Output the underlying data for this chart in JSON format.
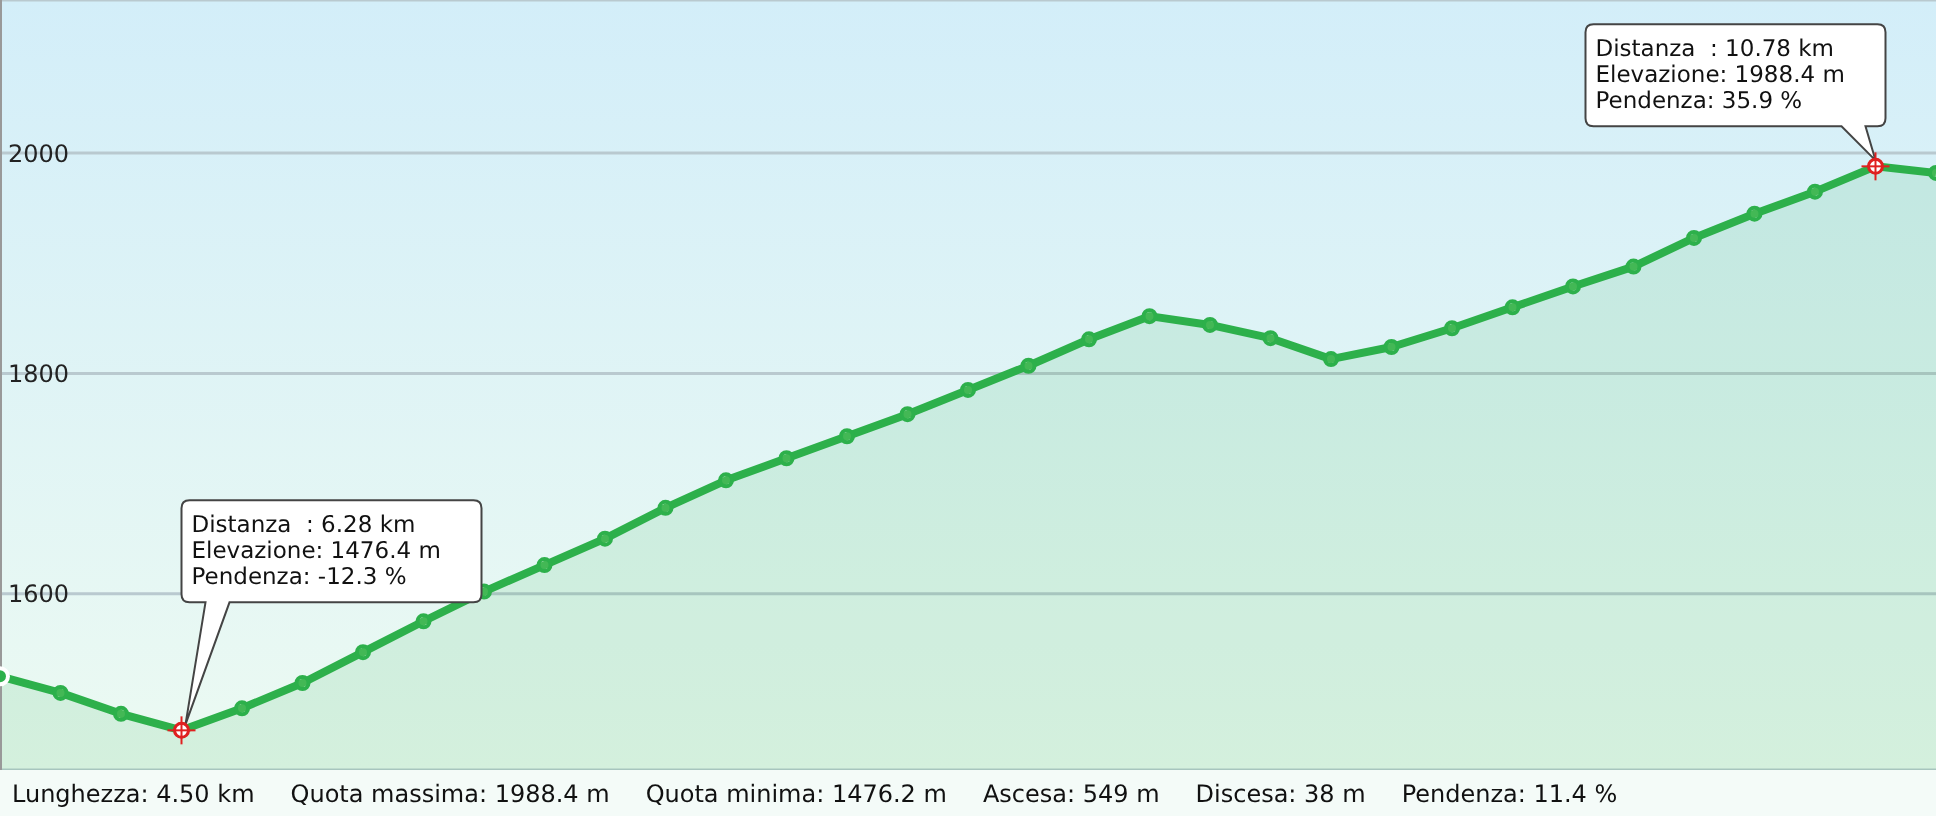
{
  "chart_data": {
    "type": "area",
    "categories": [
      null,
      null,
      null,
      null,
      null,
      null,
      null,
      null,
      null,
      null,
      null,
      null,
      null,
      null,
      null,
      null,
      null,
      null,
      null,
      null,
      null,
      null,
      null,
      null,
      null,
      null,
      null,
      null,
      null,
      null,
      null,
      null,
      null
    ],
    "series": [
      {
        "color": "#2db04b",
        "values": [
          1525,
          1510,
          1491,
          1476,
          1496,
          1519,
          1547,
          1575,
          1602,
          1626,
          1650,
          1678,
          1703,
          1723,
          1743,
          1763,
          1785,
          1807,
          1831,
          1852,
          1844,
          1832,
          1813,
          1824,
          1841,
          1860,
          1879,
          1897,
          1923,
          1945,
          1965,
          1988,
          1982
        ]
      }
    ],
    "ylim": [
      1440,
      2139
    ],
    "yticks": [
      1600,
      1800,
      2000
    ],
    "tick_labels": "y",
    "grid": "y",
    "marker": "circle",
    "annotations": [
      "Distanza  : 6.28 km\nElevazione: 1476.4 m\nPendenza: -12.3 %",
      "Distanza  : 10.78 km\nElevazione: 1988.4 m\nPendenza: 35.9 %",
      "Lunghezza: 4.50 km",
      "Quota massima: 1988.4 m",
      "Quota minima: 1476.2 m",
      "Ascesa: 549 m",
      "Discesa: 38 m",
      "Pendenza: 11.4 %"
    ]
  }
}
